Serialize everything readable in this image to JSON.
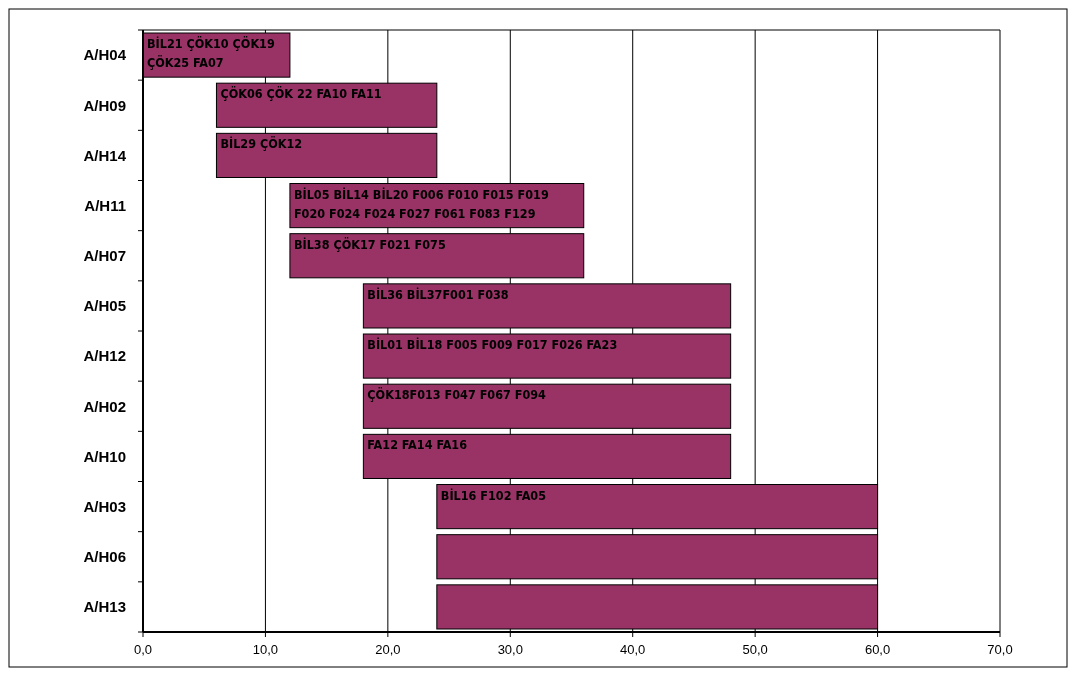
{
  "chart_data": {
    "type": "bar",
    "orientation": "horizontal",
    "categories": [
      "A/H04",
      "A/H09",
      "A/H14",
      "A/H11",
      "A/H07",
      "A/H05",
      "A/H12",
      "A/H02",
      "A/H10",
      "A/H03",
      "A/H06",
      "A/H13"
    ],
    "base": [
      0,
      6,
      6,
      12,
      12,
      18,
      18,
      18,
      18,
      24,
      24,
      24
    ],
    "values": [
      12,
      18,
      18,
      24,
      24,
      30,
      30,
      30,
      30,
      36,
      36,
      36
    ],
    "color": "#993366",
    "xlim": [
      0,
      70
    ],
    "xticks": [
      {
        "value": 0,
        "label": "0,0"
      },
      {
        "value": 10,
        "label": "10,0"
      },
      {
        "value": 20,
        "label": "20,0"
      },
      {
        "value": 30,
        "label": "30,0"
      },
      {
        "value": 40,
        "label": "40,0"
      },
      {
        "value": 50,
        "label": "50,0"
      },
      {
        "value": 60,
        "label": "60,0"
      },
      {
        "value": 70,
        "label": "70,0"
      }
    ],
    "grid": "x",
    "annotations": [
      {
        "text": "BİL21 ÇÖK10 ÇÖK19 ÇÖK25 FA07",
        "x": 0,
        "y": "A/H04"
      },
      {
        "text": "ÇÖK06 ÇÖK 22 FA10 FA11",
        "x": 6,
        "y": "A/H09"
      },
      {
        "text": "BİL29 ÇÖK12",
        "x": 6,
        "y": "A/H14"
      },
      {
        "text": "BİL05 BİL14 BİL20 F006 F010 F015 F019 F020 F024 F024 F027 F061 F083 F129",
        "x": 12,
        "y": "A/H11"
      },
      {
        "text": "BİL38 ÇÖK17 F021 F075",
        "x": 12,
        "y": "A/H07"
      },
      {
        "text": "BİL36 BİL37F001 F038",
        "x": 18,
        "y": "A/H05"
      },
      {
        "text": "BİL01 BİL18 F005 F009 F017 F026 FA23",
        "x": 18,
        "y": "A/H12"
      },
      {
        "text": "ÇÖK18F013 F047 F067 F094",
        "x": 18,
        "y": "A/H02"
      },
      {
        "text": "FA12 FA14 FA16",
        "x": 18,
        "y": "A/H10"
      },
      {
        "text": "BİL16 F102 FA05",
        "x": 24,
        "y": "A/H03"
      }
    ]
  }
}
